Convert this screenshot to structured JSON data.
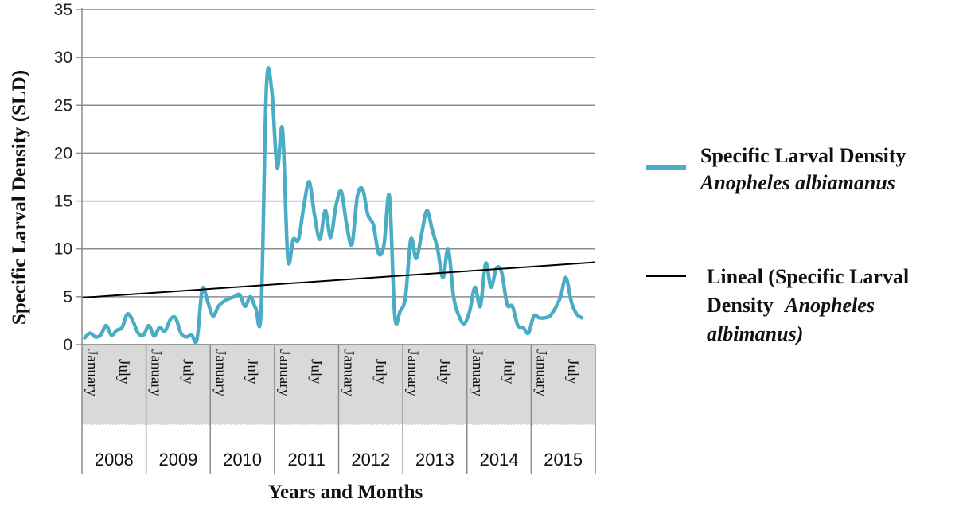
{
  "chart_data": {
    "type": "line",
    "title": "",
    "xlabel": "Years and Months",
    "ylabel": "Specific Larval Density (SLD)",
    "ylim": [
      0,
      35
    ],
    "yticks": [
      0,
      5,
      10,
      15,
      20,
      25,
      30,
      35
    ],
    "grid": "horizontal",
    "legend_position": "right",
    "years": [
      "2008",
      "2009",
      "2010",
      "2011",
      "2012",
      "2013",
      "2014",
      "2015"
    ],
    "month_ticks": [
      "January",
      "July"
    ],
    "series": [
      {
        "name_line1": "Specific Larval Density",
        "name_line2": "Anopheles albiamanus",
        "color": "#4bacc6",
        "x_months": [
          0,
          1,
          2,
          3,
          4,
          5,
          6,
          7,
          8,
          9,
          10,
          11,
          12,
          13,
          14,
          15,
          16,
          17,
          18,
          19,
          20,
          21,
          22,
          23,
          24,
          25,
          26,
          27,
          28,
          29,
          30,
          31,
          32,
          33,
          34,
          35,
          36,
          37,
          38,
          39,
          40,
          41,
          42,
          43,
          44,
          45,
          46,
          47,
          48,
          49,
          50,
          51,
          52,
          53,
          54,
          55,
          56,
          57,
          58,
          59,
          60,
          61,
          62,
          63,
          64,
          65,
          66,
          67,
          68,
          69,
          70,
          71,
          72,
          73,
          74,
          75,
          76,
          77,
          78,
          79,
          80,
          81,
          82,
          83,
          84,
          85,
          86,
          87,
          88,
          89,
          90,
          91,
          92,
          93,
          94,
          95
        ],
        "values": [
          0.7,
          1.2,
          0.8,
          1.0,
          2.0,
          1.0,
          1.5,
          1.8,
          3.2,
          2.5,
          1.2,
          1.0,
          2.0,
          0.9,
          1.8,
          1.4,
          2.6,
          2.8,
          1.2,
          0.8,
          1.0,
          0.5,
          5.8,
          4.5,
          3.0,
          4.0,
          4.5,
          4.8,
          5.0,
          5.2,
          4.0,
          5.0,
          3.8,
          3.6,
          27.0,
          26.5,
          18.5,
          22.5,
          9.0,
          11.0,
          11.0,
          14.5,
          17.0,
          13.5,
          11.0,
          14.0,
          11.2,
          14.5,
          16.0,
          12.5,
          10.5,
          15.5,
          16.2,
          13.5,
          12.5,
          9.5,
          10.5,
          15.5,
          3.0,
          3.5,
          5.0,
          11.0,
          9.0,
          11.5,
          14.0,
          12.0,
          10.0,
          7.0,
          10.0,
          5.0,
          3.0,
          2.2,
          3.5,
          6.0,
          4.0,
          8.5,
          6.0,
          8.0,
          7.5,
          4.2,
          4.0,
          2.0,
          1.8,
          1.2,
          3.0,
          2.8,
          2.8,
          3.0,
          3.8,
          5.0,
          7.0,
          4.5,
          3.2,
          2.8,
          null,
          null
        ]
      },
      {
        "name_line1": "Lineal (Specific Larval",
        "name_line2": "Density",
        "name_line2_italic": "Anopheles",
        "name_line3": "albimanus)",
        "color": "#000000",
        "type": "trendline",
        "start_value": 4.9,
        "end_value": 8.6
      }
    ]
  }
}
